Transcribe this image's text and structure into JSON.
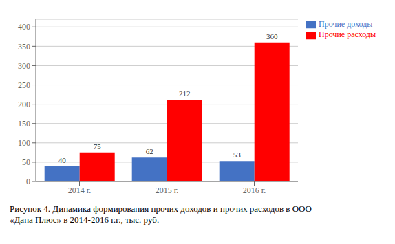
{
  "chart_data": {
    "type": "bar",
    "title": "Рисунок 4. Динамика формирования прочих доходов и прочих расходов в ООО\n«Дана Плюс» в 2014-2016 г.г., тыс. руб.",
    "categories": [
      "2014 г.",
      "2015 г.",
      "2016 г."
    ],
    "series": [
      {
        "name": "Прочие доходы",
        "color": "#4472C4",
        "values": [
          40,
          62,
          53
        ]
      },
      {
        "name": "Прочие расходы",
        "color": "#FF0000",
        "values": [
          75,
          212,
          360
        ]
      }
    ],
    "ylim": [
      0,
      420
    ],
    "yticks": [
      0,
      50,
      100,
      150,
      200,
      250,
      300,
      350,
      400
    ],
    "grid": true,
    "legend": "right",
    "data_labels": true
  }
}
